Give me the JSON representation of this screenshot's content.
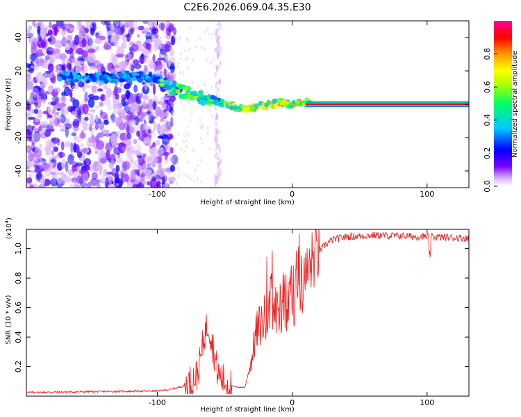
{
  "title": "C2E6.2026.069.04.35.E30",
  "chart_data": [
    {
      "type": "heatmap",
      "id": "spectrogram",
      "xlabel": "Height of straight line (km)",
      "ylabel": "Frequency (Hz)",
      "xlim": [
        -197,
        131
      ],
      "ylim": [
        -50,
        50
      ],
      "xticks": [
        -100,
        0,
        100
      ],
      "xtick_labels": [
        "-100",
        "0",
        "100"
      ],
      "yticks": [
        -40,
        -20,
        0,
        20,
        40
      ],
      "ytick_labels": [
        "-40",
        "-20",
        "0",
        "20",
        "40"
      ],
      "noise_region_x": [
        -197,
        -93
      ],
      "weak_stripe_x": -55,
      "signal_track": {
        "x": [
          -172,
          -150,
          -130,
          -115,
          -105,
          -97,
          -90,
          -80,
          -70,
          -60,
          -52,
          -45,
          -38,
          -30,
          -22,
          -15,
          -8,
          0,
          5,
          10,
          15,
          131
        ],
        "freq": [
          17,
          16,
          16,
          17,
          16,
          14,
          10,
          7,
          5,
          3,
          1,
          -1,
          -3,
          -2,
          -1,
          0,
          1,
          0,
          1,
          1,
          0,
          0
        ]
      },
      "steady_line": {
        "x_start": 10,
        "x_end": 131,
        "freq": 0,
        "amplitude": 0.9
      },
      "colorbar": {
        "label": "Normalized spectral amplitude",
        "range": [
          0,
          1
        ],
        "ticks": [
          0.0,
          0.2,
          0.4,
          0.6,
          0.8
        ],
        "tick_labels": [
          "0.0",
          "0.2",
          "0.4",
          "0.6",
          "0.8"
        ],
        "colors": [
          "#ffffff",
          "#7a00ff",
          "#0000ff",
          "#00c8ff",
          "#00ff64",
          "#b4ff00",
          "#ffff00",
          "#ff9600",
          "#ff0000",
          "#ff0096"
        ]
      }
    },
    {
      "type": "line",
      "id": "snr",
      "xlabel": "Height of straight line (km)",
      "ylabel": "SNR (10 * v/v)",
      "y_multiplier_label": "(x10",
      "y_multiplier_exp": "4",
      "y_multiplier_close": ")",
      "xlim": [
        -197,
        131
      ],
      "ylim": [
        0,
        1.13
      ],
      "xticks": [
        -100,
        0,
        100
      ],
      "xtick_labels": [
        "-100",
        "0",
        "100"
      ],
      "yticks": [
        0.2,
        0.4,
        0.6,
        0.8,
        1.0
      ],
      "ytick_labels": [
        "0.2",
        "0.4",
        "0.6",
        "0.8",
        "1.0"
      ],
      "color": "#ee2222",
      "envelope": {
        "x": [
          -197,
          -150,
          -100,
          -90,
          -80,
          -75,
          -70,
          -67,
          -65,
          -62,
          -60,
          -57,
          -55,
          -50,
          -45,
          -40,
          -35,
          -30,
          -27,
          -24,
          -20,
          -15,
          -10,
          -5,
          0,
          5,
          10,
          15,
          20,
          25,
          30,
          40,
          60,
          100,
          131
        ],
        "y": [
          0.025,
          0.03,
          0.035,
          0.045,
          0.07,
          0.1,
          0.15,
          0.3,
          0.42,
          0.5,
          0.4,
          0.25,
          0.15,
          0.1,
          0.07,
          0.06,
          0.06,
          0.25,
          0.42,
          0.48,
          0.53,
          0.57,
          0.6,
          0.64,
          0.68,
          0.72,
          0.8,
          0.92,
          0.98,
          1.03,
          1.06,
          1.08,
          1.09,
          1.08,
          1.07
        ]
      }
    }
  ]
}
